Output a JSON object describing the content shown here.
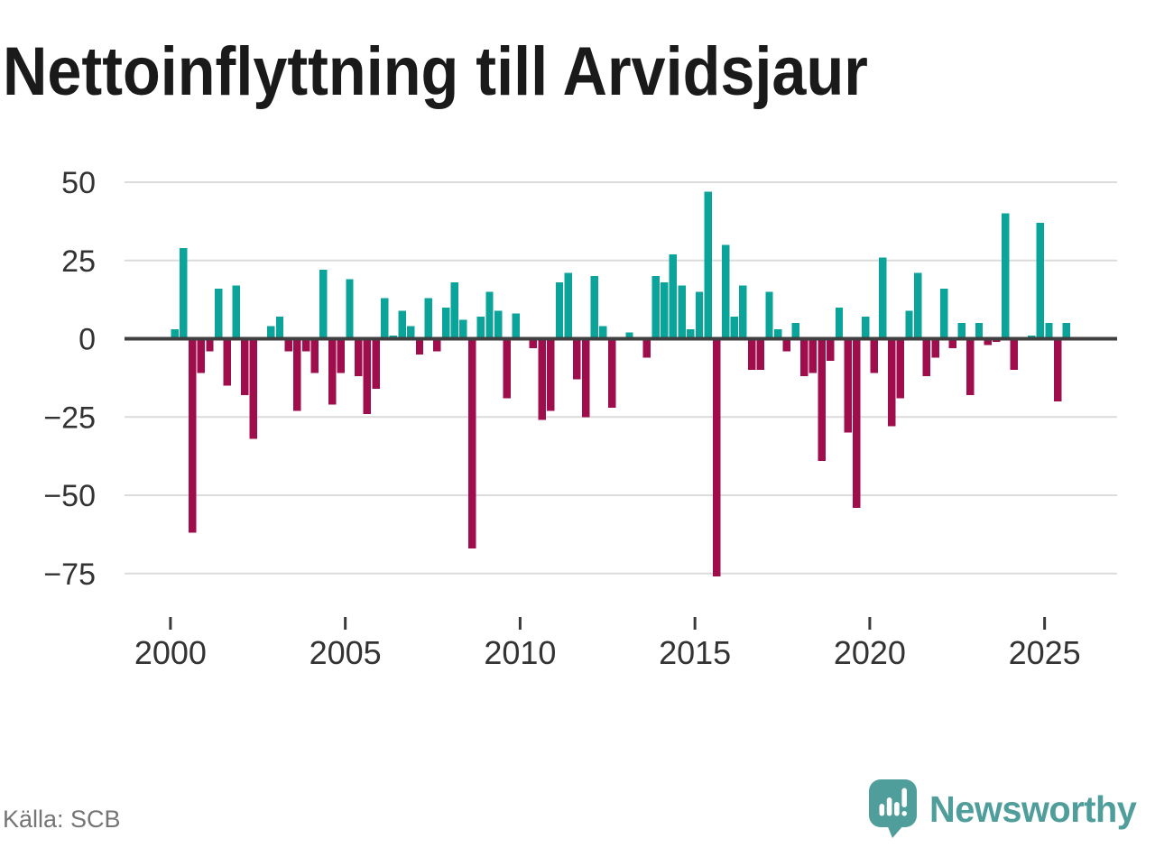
{
  "brand": {
    "name": "Newsworthy",
    "color": "#4f9e9c"
  },
  "chart_data": {
    "type": "bar",
    "title": "Nettoinflyttning till Arvidsjaur",
    "source": "Källa: SCB",
    "period": "quarterly",
    "start": "2000 Q1",
    "end": "2025 Q3",
    "values": [
      3,
      29,
      -62,
      -11,
      -4,
      16,
      -15,
      17,
      -18,
      -32,
      0,
      4,
      7,
      -4,
      -23,
      -4,
      -11,
      22,
      -21,
      -11,
      19,
      -12,
      -24,
      -16,
      13,
      1,
      9,
      4,
      -5,
      13,
      -4,
      10,
      18,
      6,
      -67,
      7,
      15,
      9,
      -19,
      8,
      0,
      -3,
      -26,
      -23,
      18,
      21,
      -13,
      -25,
      20,
      4,
      -22,
      0,
      2,
      0,
      -6,
      20,
      18,
      27,
      17,
      3,
      15,
      47,
      -76,
      30,
      7,
      17,
      -10,
      -10,
      15,
      3,
      -4,
      5,
      -12,
      -11,
      -39,
      -7,
      10,
      -30,
      -54,
      7,
      -11,
      26,
      -28,
      -19,
      9,
      21,
      -12,
      -6,
      16,
      -3,
      5,
      -18,
      5,
      -2,
      -1,
      40,
      -10,
      0,
      1,
      37,
      5,
      -20,
      5
    ],
    "xticks": [
      2000,
      2005,
      2010,
      2015,
      2020,
      2025
    ],
    "xtick_labels": [
      "2000",
      "2005",
      "2010",
      "2015",
      "2020",
      "2025"
    ],
    "yticks": [
      50,
      25,
      0,
      -25,
      -50,
      -75
    ],
    "ytick_labels": [
      "50",
      "25",
      "0",
      "−25",
      "−50",
      "−75"
    ],
    "ylim": [
      -80,
      52
    ],
    "grid": "horizontal",
    "legend": "none",
    "colors": {
      "positive": "#0ba49a",
      "negative": "#a00d4c",
      "grid_line": "#dcdcdc",
      "zero_line": "#3f3f3f",
      "tick_mark": "#3a3a3a",
      "axis_text": "#333333",
      "source_text": "#757575",
      "title_text": "#1a1a1a"
    }
  }
}
